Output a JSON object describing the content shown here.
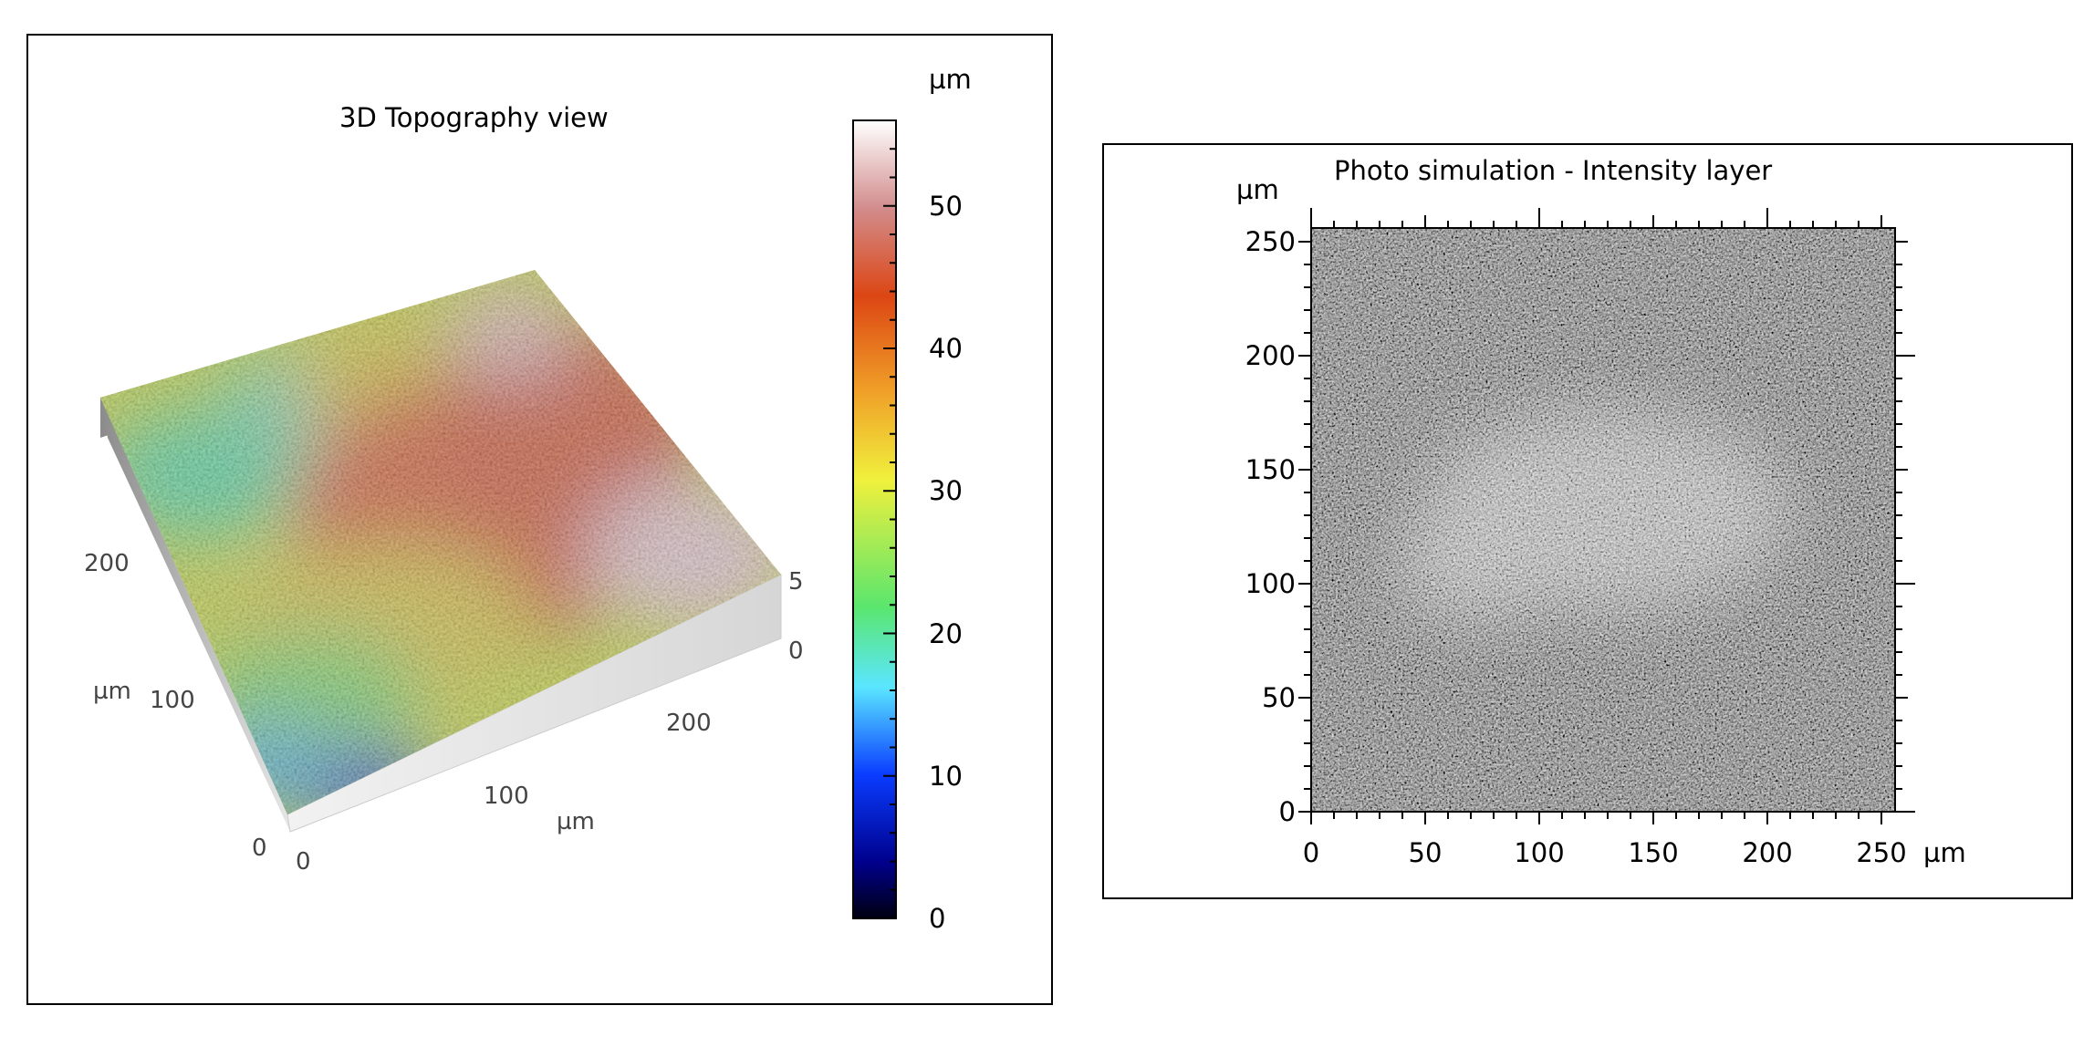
{
  "chart_data": [
    {
      "type": "heatmap",
      "view": "3d-surface",
      "title": "3D Topography view",
      "x_axis": {
        "label": "µm",
        "ticks": [
          "0",
          "100",
          "200"
        ],
        "range": [
          0,
          256
        ]
      },
      "y_axis": {
        "label": "µm",
        "ticks": [
          "0",
          "100",
          "200"
        ],
        "range": [
          0,
          256
        ]
      },
      "z_axis": {
        "ticks": [
          "0",
          "5"
        ]
      },
      "colorbar": {
        "unit": "µm",
        "range": [
          0,
          56
        ],
        "ticks": [
          "0",
          "10",
          "20",
          "30",
          "40",
          "50"
        ],
        "colors": [
          "#000010",
          "#00008c",
          "#0a3cff",
          "#5ae6ff",
          "#5ae66e",
          "#f0f03c",
          "#f0a028",
          "#dc4614",
          "#d28c8c",
          "#ffffff"
        ]
      }
    },
    {
      "type": "heatmap",
      "view": "grayscale-image",
      "title": "Photo simulation - Intensity layer",
      "x_axis": {
        "label": "µm",
        "ticks": [
          "0",
          "50",
          "100",
          "150",
          "200",
          "250"
        ],
        "range": [
          0,
          256
        ]
      },
      "y_axis": {
        "label": "µm",
        "ticks": [
          "0",
          "50",
          "100",
          "150",
          "200",
          "250"
        ],
        "range": [
          0,
          256
        ]
      },
      "colormap": "gray"
    }
  ]
}
